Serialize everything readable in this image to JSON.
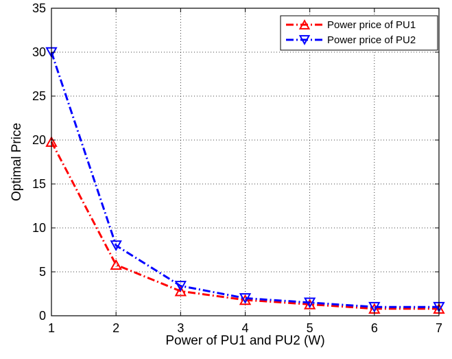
{
  "chart_data": {
    "type": "line",
    "title": "",
    "xlabel": "Power of PU1 and PU2 (W)",
    "ylabel": "Optimal Price",
    "xlim": [
      1,
      7
    ],
    "ylim": [
      0,
      35
    ],
    "x_ticks": [
      "1",
      "2",
      "3",
      "4",
      "5",
      "6",
      "7"
    ],
    "y_ticks": [
      "0",
      "5",
      "10",
      "15",
      "20",
      "25",
      "30",
      "35"
    ],
    "grid": true,
    "grid_style": "dotted",
    "legend_position": "top-right",
    "x": [
      1,
      2,
      3,
      4,
      5,
      6,
      7
    ],
    "series": [
      {
        "name": "Power price of PU1",
        "values": [
          19.8,
          5.8,
          2.8,
          1.8,
          1.3,
          0.8,
          0.8
        ],
        "color": "#ff0000",
        "line_style": "dash-dot",
        "marker": "triangle-up"
      },
      {
        "name": "Power price of PU2",
        "values": [
          30.0,
          8.0,
          3.4,
          2.0,
          1.5,
          1.0,
          1.0
        ],
        "color": "#0000ff",
        "line_style": "dash-dot",
        "marker": "triangle-down"
      }
    ]
  }
}
